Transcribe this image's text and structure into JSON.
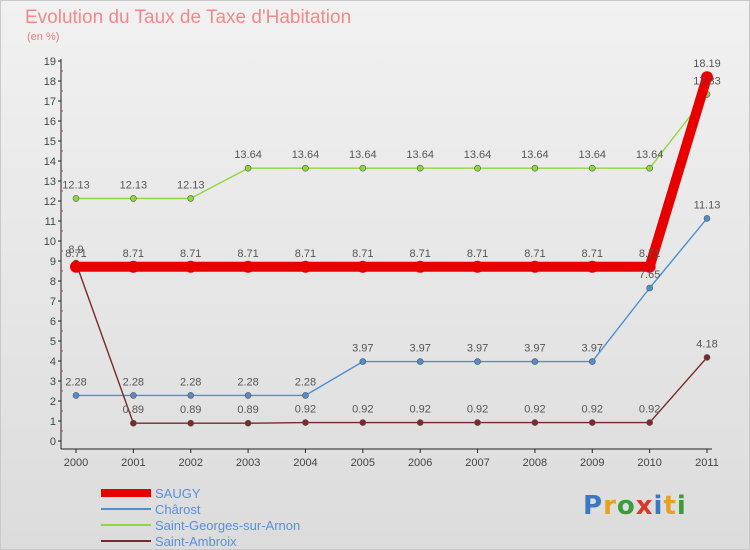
{
  "header": {
    "title": "Evolution du Taux de Taxe d'Habitation",
    "unit": "(en %)"
  },
  "logo": {
    "letters": [
      "P",
      "r",
      "o",
      "x",
      "i",
      "t",
      "i"
    ],
    "colors": [
      "#3a78c2",
      "#e8a020",
      "#3a9d3a",
      "#d63a2a",
      "#3a78c2",
      "#e8a020",
      "#3a9d3a"
    ]
  },
  "chart_data": {
    "type": "line",
    "title": "Evolution du Taux de Taxe d'Habitation",
    "ylabel": "(en %)",
    "xlabel": "",
    "ylim": [
      0,
      19
    ],
    "grid": false,
    "legend_position": "bottom-left",
    "x": [
      "2000",
      "2001",
      "2002",
      "2003",
      "2004",
      "2005",
      "2006",
      "2007",
      "2008",
      "2009",
      "2010",
      "2011"
    ],
    "y_ticks": [
      "0",
      "1",
      "2",
      "3",
      "4",
      "5",
      "6",
      "7",
      "8",
      "9",
      "10",
      "11",
      "12",
      "13",
      "14",
      "15",
      "16",
      "17",
      "18",
      "19"
    ],
    "series": [
      {
        "name": "SAUGY",
        "color": "#e80000",
        "values": [
          8.71,
          8.71,
          8.71,
          8.71,
          8.71,
          8.71,
          8.71,
          8.71,
          8.71,
          8.71,
          8.71,
          18.19
        ],
        "labels": [
          "8.71",
          "8.71",
          "8.71",
          "8.71",
          "8.71",
          "8.71",
          "8.71",
          "8.71",
          "8.71",
          "8.71",
          "8.71",
          "18.19"
        ]
      },
      {
        "name": "Chârost",
        "color": "#4f8fd0",
        "values": [
          2.28,
          2.28,
          2.28,
          2.28,
          2.28,
          3.97,
          3.97,
          3.97,
          3.97,
          3.97,
          7.65,
          11.13
        ],
        "labels": [
          "2.28",
          "2.28",
          "2.28",
          "2.28",
          "2.28",
          "3.97",
          "3.97",
          "3.97",
          "3.97",
          "3.97",
          "7.65",
          "11.13"
        ]
      },
      {
        "name": "Saint-Georges-sur-Arnon",
        "color": "#8fd83c",
        "values": [
          12.13,
          12.13,
          12.13,
          13.64,
          13.64,
          13.64,
          13.64,
          13.64,
          13.64,
          13.64,
          13.64,
          17.33
        ],
        "labels": [
          "12.13",
          "12.13",
          "12.13",
          "13.64",
          "13.64",
          "13.64",
          "13.64",
          "13.64",
          "13.64",
          "13.64",
          "13.64",
          "17.33"
        ]
      },
      {
        "name": "Saint-Ambroix",
        "color": "#7a2a2a",
        "values": [
          8.9,
          0.89,
          0.89,
          0.89,
          0.92,
          0.92,
          0.92,
          0.92,
          0.92,
          0.92,
          0.92,
          4.18
        ],
        "labels": [
          "8.9",
          "0.89",
          "0.89",
          "0.89",
          "0.92",
          "0.92",
          "0.92",
          "0.92",
          "0.92",
          "0.92",
          "0.92",
          "4.18"
        ]
      }
    ]
  }
}
